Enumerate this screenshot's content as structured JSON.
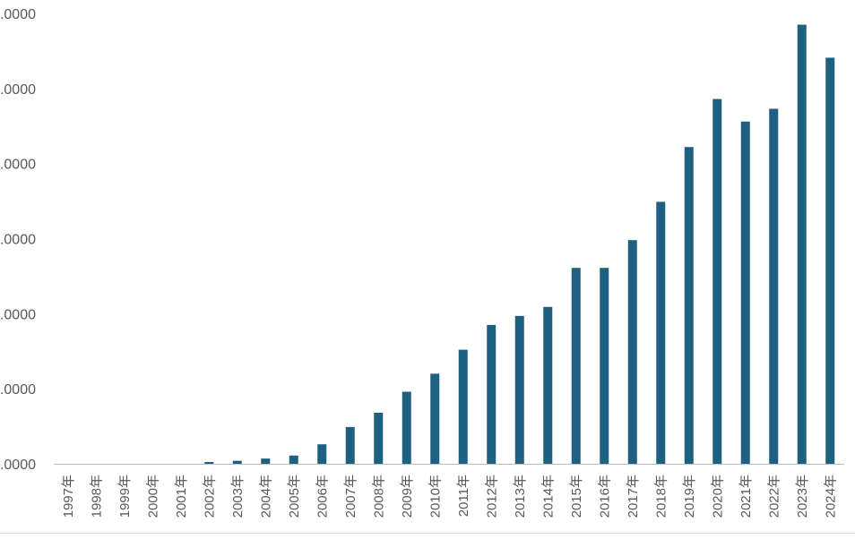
{
  "chart_data": {
    "type": "bar",
    "title": "",
    "xlabel": "",
    "ylabel": "",
    "categories": [
      "1997年",
      "1998年",
      "1999年",
      "2000年",
      "2001年",
      "2002年",
      "2003年",
      "2004年",
      "2005年",
      "2006年",
      "2007年",
      "2008年",
      "2009年",
      "2010年",
      "2011年",
      "2012年",
      "2013年",
      "2014年",
      "2015年",
      "2016年",
      "2017年",
      "2018年",
      "2019年",
      "2020年",
      "2021年",
      "2022年",
      "2023年",
      "2024年"
    ],
    "values": [
      0,
      0,
      0,
      0,
      0,
      0.012,
      0.02,
      0.035,
      0.055,
      0.13,
      0.245,
      0.34,
      0.48,
      0.6,
      0.76,
      0.925,
      0.985,
      1.045,
      1.305,
      1.305,
      1.49,
      1.745,
      2.11,
      2.43,
      2.28,
      2.365,
      2.925,
      2.705
    ],
    "y_tick_labels": [
      ".0000",
      ".0000",
      ".0000",
      ".0000",
      ".0000",
      ".0000",
      ".0000"
    ],
    "ylim": [
      0,
      3
    ],
    "bar_color": "#1f5f7f",
    "grid": false,
    "legend": "none"
  }
}
